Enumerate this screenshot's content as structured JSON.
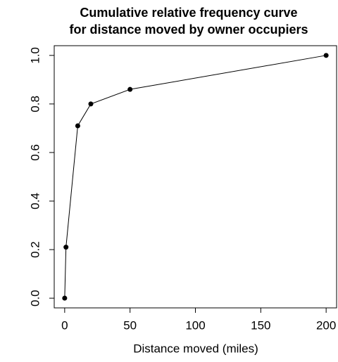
{
  "chart_data": {
    "type": "line",
    "title": [
      "Cumulative relative frequency curve",
      "for distance moved by owner occupiers"
    ],
    "x_label": "Distance moved (miles)",
    "x": [
      0,
      1,
      10,
      20,
      50,
      200
    ],
    "values": [
      0,
      0.21,
      0.71,
      0.8,
      0.86,
      1.0
    ],
    "color": "#000000",
    "xlim": [
      -8,
      208
    ],
    "ylim": [
      -0.04,
      1.04
    ],
    "xticks": [
      0,
      50,
      100,
      150,
      200
    ],
    "yticks": [
      {
        "value": 0,
        "label": "0.0"
      },
      {
        "value": 0.2,
        "label": "0.2"
      },
      {
        "value": 0.4,
        "label": "0.4"
      },
      {
        "value": 0.6,
        "label": "0.6"
      },
      {
        "value": 0.8,
        "label": "0.8"
      },
      {
        "value": 1.0,
        "label": "1.0"
      }
    ]
  }
}
